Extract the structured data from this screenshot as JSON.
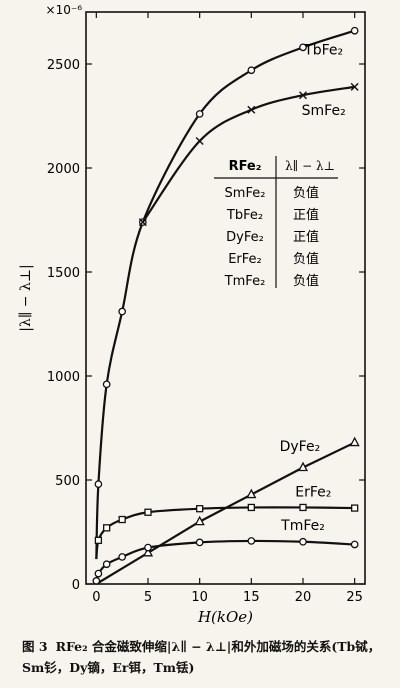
{
  "chart_data": {
    "type": "line",
    "title": "",
    "xlabel": "H(kOe)",
    "ylabel": "|λ∥ − λ⊥|",
    "multiplier": "×10⁻⁶",
    "xlim": [
      -1,
      26
    ],
    "ylim": [
      0,
      2750
    ],
    "xticks": [
      0,
      5,
      10,
      15,
      20,
      25
    ],
    "yticks": [
      0,
      500,
      1000,
      1500,
      2000,
      2500
    ],
    "grid": false,
    "series": [
      {
        "name": "TbFe₂",
        "marker": "circle",
        "points": [
          [
            0,
            120
          ],
          [
            0.2,
            480
          ],
          [
            1,
            960
          ],
          [
            2.5,
            1310
          ],
          [
            4.5,
            1740
          ],
          [
            10,
            2260
          ],
          [
            15,
            2470
          ],
          [
            20,
            2580
          ],
          [
            25,
            2660
          ]
        ]
      },
      {
        "name": "SmFe₂",
        "marker": "cross",
        "points": [
          [
            4.5,
            1740
          ],
          [
            10,
            2130
          ],
          [
            15,
            2280
          ],
          [
            20,
            2350
          ],
          [
            25,
            2390
          ]
        ]
      },
      {
        "name": "DyFe₂",
        "marker": "triangle",
        "points": [
          [
            0,
            0
          ],
          [
            5,
            150
          ],
          [
            10,
            300
          ],
          [
            15,
            430
          ],
          [
            20,
            560
          ],
          [
            25,
            680
          ]
        ]
      },
      {
        "name": "ErFe₂",
        "marker": "square",
        "points": [
          [
            0,
            120
          ],
          [
            0.2,
            210
          ],
          [
            1,
            270
          ],
          [
            2.5,
            310
          ],
          [
            5,
            345
          ],
          [
            10,
            362
          ],
          [
            15,
            368
          ],
          [
            20,
            368
          ],
          [
            25,
            365
          ]
        ]
      },
      {
        "name": "TmFe₂",
        "marker": "circle",
        "points": [
          [
            0,
            15
          ],
          [
            0.2,
            50
          ],
          [
            1,
            95
          ],
          [
            2.5,
            130
          ],
          [
            5,
            175
          ],
          [
            10,
            200
          ],
          [
            15,
            207
          ],
          [
            20,
            203
          ],
          [
            25,
            190
          ]
        ]
      }
    ],
    "legend_table": {
      "headers": [
        "RFe₂",
        "λ∥ − λ⊥"
      ],
      "rows": [
        [
          "SmFe₂",
          "负值"
        ],
        [
          "TbFe₂",
          "正值"
        ],
        [
          "DyFe₂",
          "正值"
        ],
        [
          "ErFe₂",
          "负值"
        ],
        [
          "TmFe₂",
          "负值"
        ]
      ]
    }
  },
  "caption": {
    "label": "图 3",
    "text": "RFe₂ 合金磁致伸缩|λ∥ − λ⊥|和外加磁场的关系(Tb铽，Sm钐，Dy镝，Er铒，Tm铥)"
  }
}
